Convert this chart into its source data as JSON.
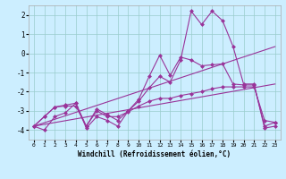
{
  "x": [
    0,
    1,
    2,
    3,
    4,
    5,
    6,
    7,
    8,
    9,
    10,
    11,
    12,
    13,
    14,
    15,
    16,
    17,
    18,
    19,
    20,
    21,
    22,
    23
  ],
  "line_zigzag1": [
    -3.8,
    -4.0,
    -3.3,
    -3.1,
    -2.6,
    -3.9,
    -3.3,
    -3.5,
    -3.8,
    -3.0,
    -2.5,
    -1.8,
    -1.2,
    -1.5,
    -0.35,
    2.2,
    1.5,
    2.2,
    1.7,
    0.35,
    -1.6,
    -1.6,
    -3.9,
    -3.8
  ],
  "line_zigzag2": [
    -3.8,
    -3.3,
    -2.8,
    -2.7,
    -2.6,
    -3.8,
    -2.9,
    -3.2,
    -3.5,
    -3.0,
    -2.4,
    -1.2,
    -0.1,
    -1.15,
    -0.2,
    -0.35,
    -0.65,
    -0.6,
    -0.55,
    -1.6,
    -1.65,
    -1.65,
    -3.8,
    -3.6
  ],
  "line_flat": [
    -3.8,
    -3.3,
    -2.8,
    -2.75,
    -2.75,
    -3.8,
    -3.0,
    -3.3,
    -3.3,
    -3.05,
    -2.75,
    -2.5,
    -2.35,
    -2.35,
    -2.2,
    -2.1,
    -2.0,
    -1.85,
    -1.75,
    -1.75,
    -1.75,
    -1.75,
    -3.5,
    -3.6
  ],
  "trend1_x": [
    0,
    23
  ],
  "trend1_y": [
    -3.8,
    -1.6
  ],
  "trend2_x": [
    0,
    23
  ],
  "trend2_y": [
    -3.8,
    0.35
  ],
  "bg_color": "#cceeff",
  "line_color": "#993399",
  "grid_color": "#99cccc",
  "xlabel": "Windchill (Refroidissement éolien,°C)",
  "ylim": [
    -4.5,
    2.5
  ],
  "xlim": [
    -0.5,
    23.5
  ],
  "yticks": [
    -4,
    -3,
    -2,
    -1,
    0,
    1,
    2
  ],
  "xticks": [
    0,
    1,
    2,
    3,
    4,
    5,
    6,
    7,
    8,
    9,
    10,
    11,
    12,
    13,
    14,
    15,
    16,
    17,
    18,
    19,
    20,
    21,
    22,
    23
  ]
}
